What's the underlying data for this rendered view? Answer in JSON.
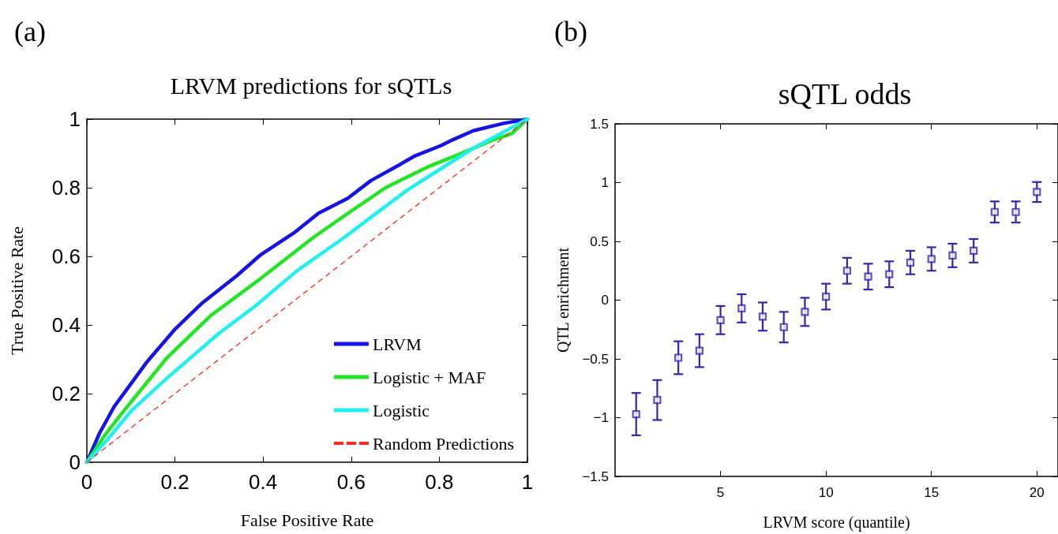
{
  "chart_data": [
    {
      "type": "line",
      "title": "LRVM predictions for sQTLs",
      "xlabel": "False Positive Rate",
      "ylabel": "True Positive Rate",
      "annotations": [
        "(a)"
      ],
      "xlim": [
        0,
        1
      ],
      "ylim": [
        0,
        1
      ],
      "xticks": [
        0,
        0.2,
        0.4,
        0.6,
        0.8,
        1
      ],
      "yticks": [
        0,
        0.2,
        0.4,
        0.6,
        0.8,
        1
      ],
      "legend": "bottom right",
      "series": [
        {
          "name": "LRVM",
          "color": "#1414e6",
          "line_style": "solid",
          "x": [
            0,
            0.029,
            0.062,
            0.138,
            0.201,
            0.26,
            0.34,
            0.393,
            0.473,
            0.526,
            0.592,
            0.645,
            0.711,
            0.745,
            0.804,
            0.831,
            0.877,
            0.944,
            1
          ],
          "values": [
            0,
            0.085,
            0.162,
            0.295,
            0.389,
            0.462,
            0.543,
            0.603,
            0.671,
            0.726,
            0.769,
            0.821,
            0.868,
            0.893,
            0.923,
            0.94,
            0.966,
            0.987,
            1
          ]
        },
        {
          "name": "Logistic + MAF",
          "color": "#22e622",
          "line_style": "solid",
          "x": [
            0,
            0.042,
            0.081,
            0.181,
            0.281,
            0.393,
            0.513,
            0.599,
            0.678,
            0.778,
            0.844,
            0.923,
            0.964,
            1
          ],
          "values": [
            0,
            0.081,
            0.145,
            0.303,
            0.427,
            0.534,
            0.654,
            0.731,
            0.8,
            0.863,
            0.897,
            0.94,
            0.957,
            1
          ]
        },
        {
          "name": "Logistic",
          "color": "#22f0f0",
          "line_style": "solid",
          "x": [
            0,
            0.048,
            0.101,
            0.181,
            0.3,
            0.38,
            0.479,
            0.579,
            0.645,
            0.725,
            0.797,
            0.877,
            0.957,
            1
          ],
          "values": [
            0,
            0.068,
            0.15,
            0.244,
            0.376,
            0.453,
            0.56,
            0.65,
            0.714,
            0.791,
            0.85,
            0.915,
            0.97,
            1
          ]
        },
        {
          "name": "Random Predictions",
          "color": "#ff2a1a",
          "line_style": "dashed",
          "x": [
            0,
            1
          ],
          "values": [
            0,
            1
          ]
        }
      ]
    },
    {
      "type": "scatter",
      "title": "sQTL odds",
      "xlabel": "LRVM score (quantile)",
      "ylabel": "QTL enrichment",
      "annotations": [
        "(b)"
      ],
      "xlim": [
        0,
        21
      ],
      "ylim": [
        -1.5,
        1.5
      ],
      "xticks": [
        5,
        10,
        15,
        20
      ],
      "yticks": [
        {
          "value": -1.5,
          "label": "−1.5"
        },
        {
          "value": -1,
          "label": "−1"
        },
        {
          "value": -0.5,
          "label": "−0.5"
        },
        0,
        0.5,
        1,
        1.5
      ],
      "marker": "square",
      "color": "#3a22b0",
      "x": [
        1,
        2,
        3,
        4,
        5,
        6,
        7,
        8,
        9,
        10,
        11,
        12,
        13,
        14,
        15,
        16,
        17,
        18,
        19,
        20
      ],
      "values": [
        -0.97,
        -0.85,
        -0.49,
        -0.43,
        -0.17,
        -0.07,
        -0.14,
        -0.23,
        -0.1,
        0.03,
        0.25,
        0.2,
        0.22,
        0.32,
        0.35,
        0.38,
        0.42,
        0.75,
        0.75,
        0.92
      ],
      "errors": [
        0.18,
        0.17,
        0.14,
        0.14,
        0.12,
        0.12,
        0.12,
        0.13,
        0.12,
        0.11,
        0.11,
        0.11,
        0.11,
        0.1,
        0.1,
        0.1,
        0.1,
        0.09,
        0.09,
        0.085
      ]
    }
  ]
}
